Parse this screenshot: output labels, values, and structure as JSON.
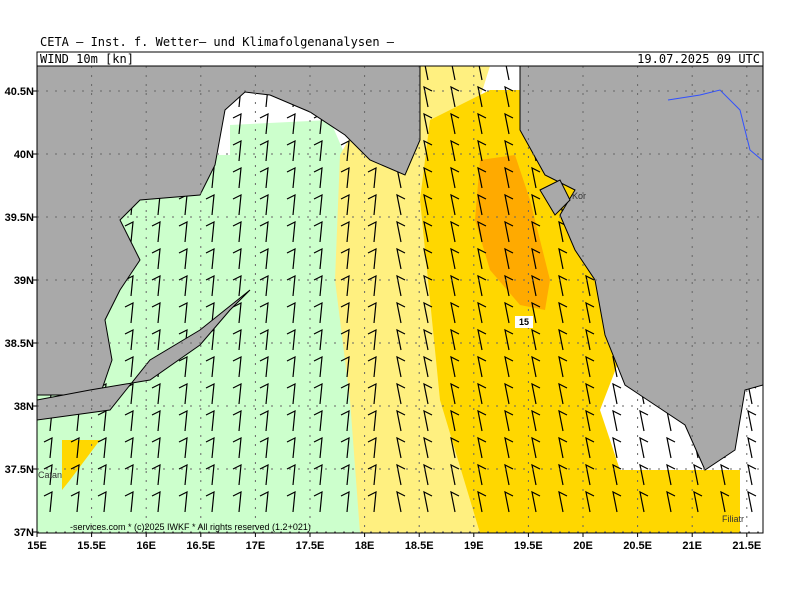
{
  "header": {
    "title": "CETA – Inst. f. Wetter– und Klimafolgenanalysen –",
    "parameter": "WIND_10m_[kn]",
    "valid_time": "19.07.2025 09 UTC"
  },
  "axes": {
    "lat_labels": [
      "40.5N",
      "40N",
      "39.5N",
      "39N",
      "38.5N",
      "38N",
      "37.5N",
      "37N"
    ],
    "lon_labels": [
      "15E",
      "15.5E",
      "16E",
      "16.5E",
      "17E",
      "17.5E",
      "18E",
      "18.5E",
      "19E",
      "19.5E",
      "20E",
      "20.5E",
      "21E",
      "21.5E"
    ]
  },
  "map": {
    "contour_label": 15,
    "places": [
      "Kor",
      "Catan",
      "Filiatr"
    ]
  },
  "footer": {
    "copyright": "-services.com * (c)2025 IWKF * All rights reserved (1.2+021)"
  }
}
